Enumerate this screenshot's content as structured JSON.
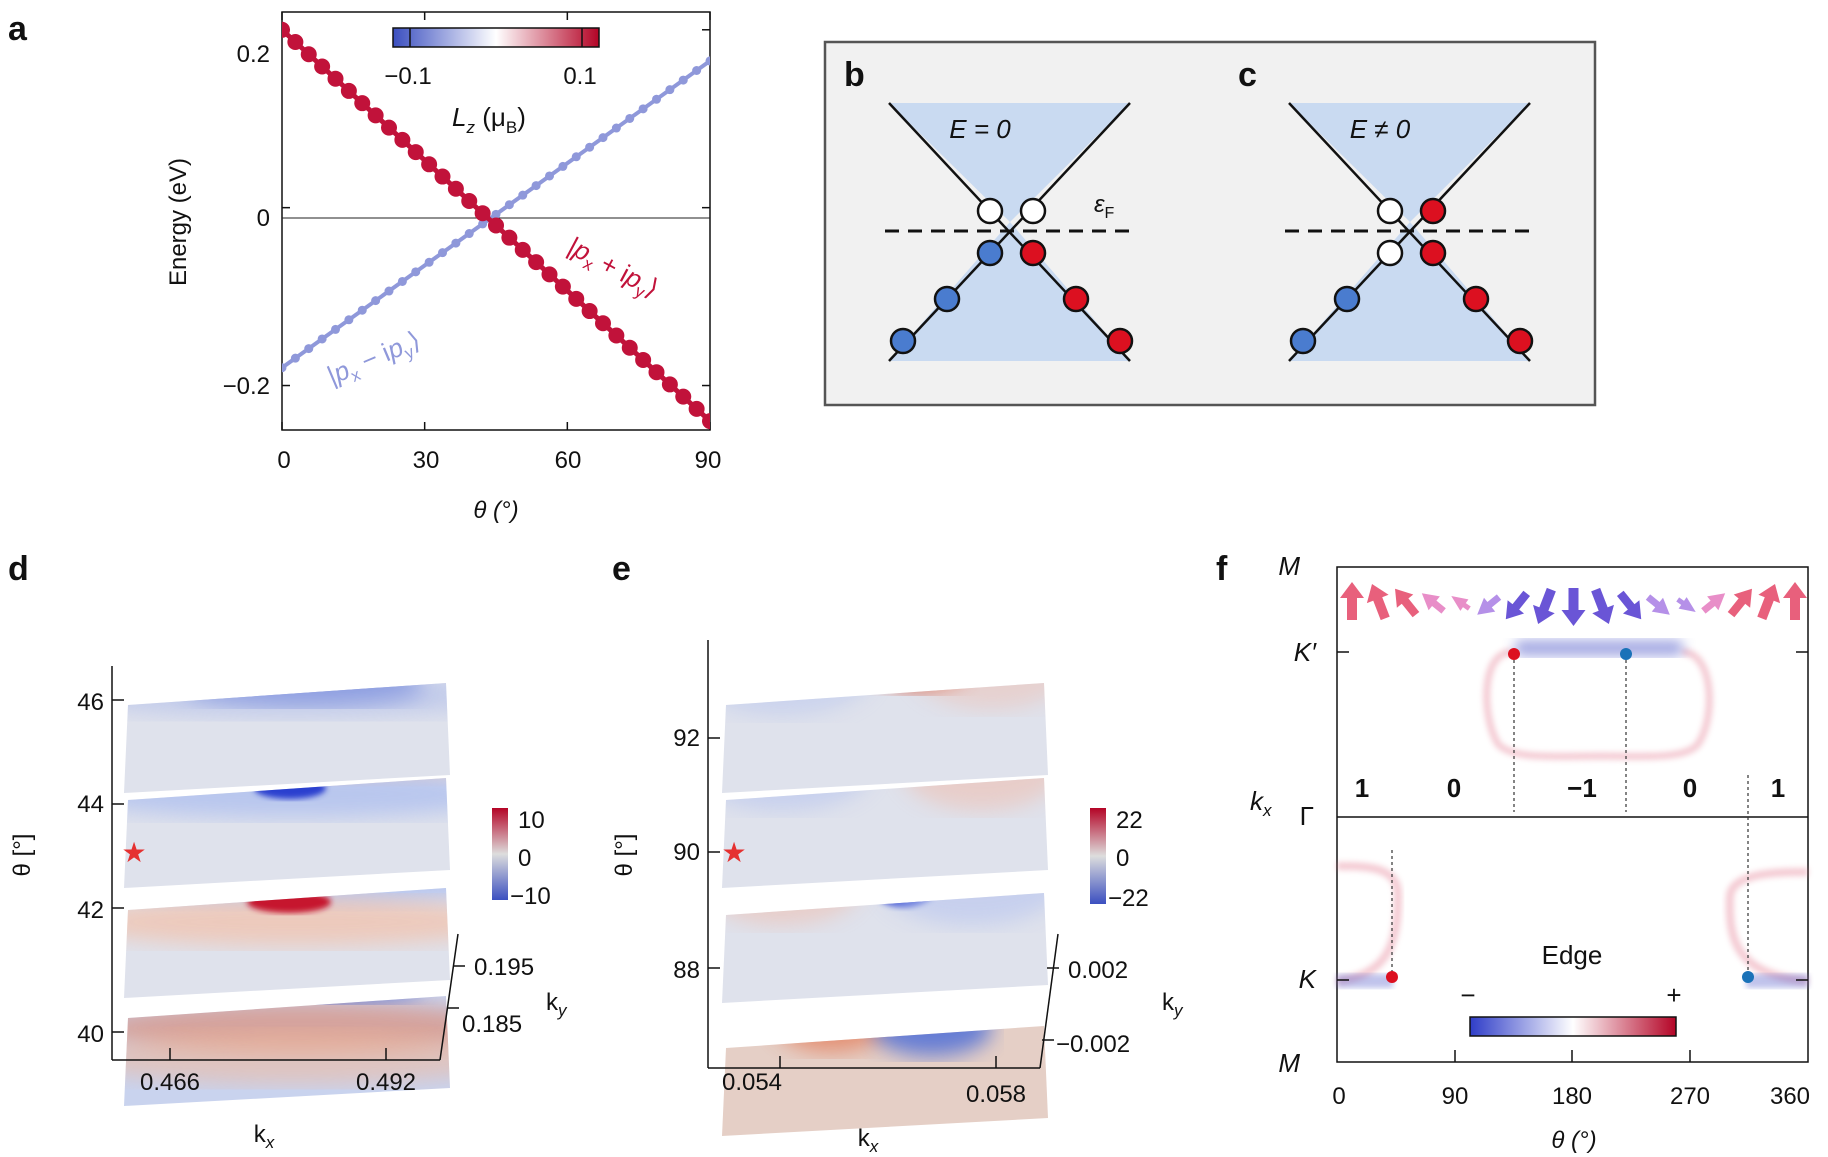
{
  "panel_labels": {
    "a": "a",
    "b": "b",
    "c": "c",
    "d": "d",
    "e": "e",
    "f": "f"
  },
  "colors": {
    "red": "#c1123a",
    "blue": "#8f98da",
    "dot_blue": "#4a7ccf",
    "dot_red": "#dc1020",
    "cone": "#c9daf1",
    "box_bg": "#f1f1f1"
  },
  "chart_data": [
    {
      "panel": "a",
      "type": "line",
      "x_tick_labels": [
        "0",
        "30",
        "60",
        "90"
      ],
      "y_tick_labels": [
        "0.2",
        "0",
        "−0.2"
      ],
      "ylabel": "Energy (eV)",
      "xlabel": "θ (°)",
      "xlim": [
        0,
        90
      ],
      "ylim": [
        -0.25,
        0.22
      ],
      "zero_line": true,
      "colorbar": {
        "label_main": "L",
        "label_sub": "z",
        "label_rest": " (μ",
        "label_unit_sub": "B",
        "label_close": ")",
        "ticks": [
          "−0.1",
          "0.1"
        ],
        "range": [
          -0.12,
          0.12
        ]
      },
      "series": [
        {
          "name": "|pₓ + ipᵧ⟩",
          "label_parts": [
            "|",
            "p",
            "x",
            " + i",
            "p",
            "y",
            "⟩"
          ],
          "color": "#c1123a",
          "x0": 0,
          "y0": 0.2,
          "x1": 90,
          "y1": -0.24,
          "points": 32
        },
        {
          "name": "|pₓ − ipᵧ⟩",
          "label_parts": [
            "|",
            "p",
            "x",
            " − i",
            "p",
            "y",
            "⟩"
          ],
          "color": "#8f98da",
          "x0": 0,
          "y0": -0.18,
          "x1": 90,
          "y1": 0.165,
          "points": 32
        }
      ]
    },
    {
      "panel": "d",
      "type": "heatmap",
      "y_tick_labels": [
        "46",
        "44",
        "42",
        "40"
      ],
      "ylabel": "θ [°]",
      "xlabel": "k",
      "xlabel_sub": "x",
      "x_tick_labels": [
        "0.466",
        "0.492"
      ],
      "ky_tick_labels": [
        "0.195",
        "0.185"
      ],
      "kylabel": "k",
      "kylabel_sub": "y",
      "colorbar_ticks": [
        "10",
        "0",
        "−10"
      ],
      "marker": "★"
    },
    {
      "panel": "e",
      "type": "heatmap",
      "y_tick_labels": [
        "92",
        "90",
        "88"
      ],
      "ylabel": "θ [°]",
      "xlabel": "k",
      "xlabel_sub": "x",
      "x_tick_labels": [
        "0.054",
        "0.058"
      ],
      "ky_tick_labels": [
        "0.002",
        "−0.002"
      ],
      "kylabel": "k",
      "kylabel_sub": "y",
      "colorbar_ticks": [
        "22",
        "0",
        "−22"
      ],
      "marker": "★"
    },
    {
      "panel": "f",
      "type": "heatmap",
      "x_tick_labels": [
        "0",
        "90",
        "180",
        "270",
        "360"
      ],
      "xlabel": "θ (°)",
      "y_tick_labels": [
        "M",
        "K′",
        "Γ",
        "K",
        "M"
      ],
      "ylabel": "k",
      "ylabel_sub": "x",
      "region_labels": [
        "1",
        "0",
        "−1",
        "0",
        "1"
      ],
      "legend_title": "Edge",
      "colorbar_ends": [
        "−",
        "+"
      ]
    }
  ],
  "schematic": {
    "b_label": "E = 0",
    "c_label": "E ≠ 0",
    "fermi_label": "ε",
    "fermi_sub": "F"
  }
}
